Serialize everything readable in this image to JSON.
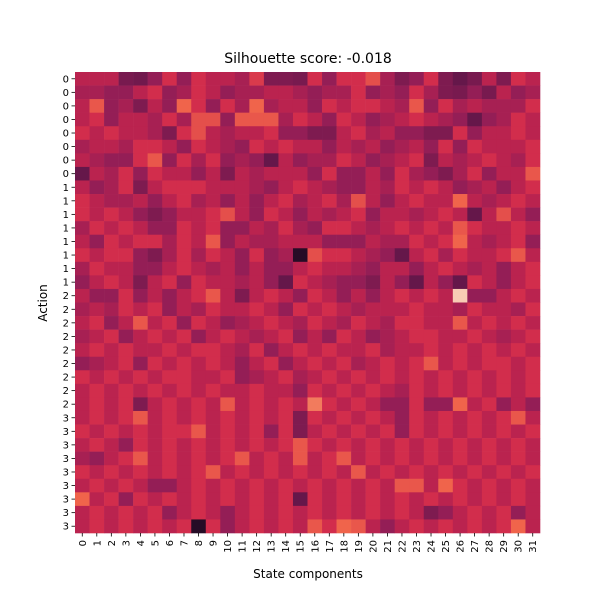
{
  "chart_data": {
    "type": "heatmap",
    "title": "Silhouette score: -0.018",
    "xlabel": "State components",
    "ylabel": "Action",
    "x_tick_labels": [
      "0",
      "1",
      "2",
      "3",
      "4",
      "5",
      "6",
      "7",
      "8",
      "9",
      "10",
      "11",
      "12",
      "13",
      "14",
      "15",
      "16",
      "17",
      "18",
      "19",
      "20",
      "21",
      "22",
      "23",
      "24",
      "25",
      "26",
      "27",
      "28",
      "29",
      "30",
      "31"
    ],
    "y_tick_labels": [
      "0",
      "0",
      "0",
      "0",
      "0",
      "0",
      "0",
      "0",
      "1",
      "1",
      "1",
      "1",
      "1",
      "1",
      "1",
      "1",
      "2",
      "2",
      "2",
      "2",
      "2",
      "2",
      "2",
      "2",
      "2",
      "3",
      "3",
      "3",
      "3",
      "3",
      "3",
      "3",
      "3",
      "3"
    ],
    "rows": 34,
    "cols": 32,
    "value_range": [
      0,
      1
    ],
    "colormap": "rocket",
    "colors": {
      "low": "#1a0a1e",
      "mid_low": "#7e1e56",
      "mid": "#c9254c",
      "mid_high": "#f06b4b",
      "high": "#f9dcc8"
    },
    "values": [
      [
        0.55,
        0.55,
        0.55,
        0.36,
        0.34,
        0.45,
        0.62,
        0.45,
        0.62,
        0.55,
        0.55,
        0.5,
        0.65,
        0.38,
        0.38,
        0.36,
        0.62,
        0.45,
        0.62,
        0.62,
        0.7,
        0.5,
        0.38,
        0.45,
        0.62,
        0.38,
        0.3,
        0.36,
        0.55,
        0.38,
        0.62,
        0.55
      ],
      [
        0.5,
        0.5,
        0.45,
        0.45,
        0.55,
        0.62,
        0.45,
        0.5,
        0.62,
        0.55,
        0.45,
        0.5,
        0.5,
        0.55,
        0.55,
        0.5,
        0.45,
        0.5,
        0.5,
        0.62,
        0.45,
        0.5,
        0.45,
        0.62,
        0.5,
        0.38,
        0.36,
        0.45,
        0.36,
        0.55,
        0.45,
        0.5
      ],
      [
        0.55,
        0.72,
        0.45,
        0.5,
        0.38,
        0.55,
        0.45,
        0.75,
        0.62,
        0.45,
        0.62,
        0.5,
        0.75,
        0.5,
        0.55,
        0.55,
        0.45,
        0.62,
        0.55,
        0.62,
        0.62,
        0.55,
        0.5,
        0.72,
        0.45,
        0.62,
        0.5,
        0.55,
        0.5,
        0.5,
        0.5,
        0.62
      ],
      [
        0.55,
        0.62,
        0.45,
        0.55,
        0.55,
        0.5,
        0.62,
        0.5,
        0.7,
        0.7,
        0.45,
        0.72,
        0.72,
        0.72,
        0.5,
        0.62,
        0.55,
        0.45,
        0.62,
        0.55,
        0.45,
        0.5,
        0.55,
        0.62,
        0.55,
        0.5,
        0.45,
        0.3,
        0.45,
        0.5,
        0.62,
        0.55
      ],
      [
        0.62,
        0.55,
        0.62,
        0.55,
        0.55,
        0.5,
        0.38,
        0.62,
        0.7,
        0.55,
        0.5,
        0.55,
        0.55,
        0.62,
        0.45,
        0.45,
        0.38,
        0.38,
        0.55,
        0.62,
        0.5,
        0.55,
        0.45,
        0.45,
        0.38,
        0.38,
        0.62,
        0.45,
        0.55,
        0.55,
        0.62,
        0.55
      ],
      [
        0.5,
        0.55,
        0.55,
        0.5,
        0.62,
        0.62,
        0.55,
        0.45,
        0.62,
        0.55,
        0.5,
        0.45,
        0.62,
        0.55,
        0.62,
        0.55,
        0.55,
        0.45,
        0.55,
        0.5,
        0.55,
        0.45,
        0.5,
        0.55,
        0.45,
        0.62,
        0.45,
        0.62,
        0.55,
        0.55,
        0.55,
        0.62
      ],
      [
        0.55,
        0.5,
        0.45,
        0.45,
        0.62,
        0.72,
        0.45,
        0.62,
        0.5,
        0.62,
        0.45,
        0.5,
        0.45,
        0.3,
        0.55,
        0.45,
        0.5,
        0.5,
        0.62,
        0.55,
        0.45,
        0.5,
        0.55,
        0.62,
        0.38,
        0.55,
        0.5,
        0.55,
        0.62,
        0.55,
        0.5,
        0.62
      ],
      [
        0.3,
        0.55,
        0.5,
        0.62,
        0.45,
        0.62,
        0.55,
        0.55,
        0.45,
        0.55,
        0.38,
        0.55,
        0.5,
        0.55,
        0.55,
        0.55,
        0.45,
        0.62,
        0.45,
        0.45,
        0.55,
        0.45,
        0.62,
        0.5,
        0.45,
        0.38,
        0.5,
        0.62,
        0.45,
        0.55,
        0.55,
        0.72
      ],
      [
        0.55,
        0.45,
        0.5,
        0.62,
        0.38,
        0.55,
        0.62,
        0.62,
        0.62,
        0.55,
        0.55,
        0.55,
        0.5,
        0.45,
        0.55,
        0.62,
        0.55,
        0.5,
        0.45,
        0.45,
        0.55,
        0.5,
        0.62,
        0.55,
        0.62,
        0.55,
        0.45,
        0.5,
        0.55,
        0.45,
        0.55,
        0.62
      ],
      [
        0.62,
        0.55,
        0.5,
        0.5,
        0.55,
        0.45,
        0.55,
        0.62,
        0.5,
        0.55,
        0.45,
        0.55,
        0.45,
        0.55,
        0.62,
        0.5,
        0.55,
        0.62,
        0.5,
        0.7,
        0.55,
        0.45,
        0.55,
        0.62,
        0.55,
        0.55,
        0.75,
        0.55,
        0.5,
        0.55,
        0.62,
        0.55
      ],
      [
        0.62,
        0.55,
        0.62,
        0.55,
        0.45,
        0.38,
        0.45,
        0.55,
        0.55,
        0.62,
        0.7,
        0.55,
        0.45,
        0.62,
        0.55,
        0.45,
        0.55,
        0.5,
        0.55,
        0.62,
        0.45,
        0.55,
        0.55,
        0.5,
        0.55,
        0.62,
        0.55,
        0.3,
        0.55,
        0.7,
        0.55,
        0.45
      ],
      [
        0.5,
        0.62,
        0.55,
        0.62,
        0.55,
        0.45,
        0.45,
        0.62,
        0.55,
        0.62,
        0.45,
        0.45,
        0.55,
        0.5,
        0.62,
        0.5,
        0.45,
        0.62,
        0.62,
        0.55,
        0.5,
        0.55,
        0.62,
        0.55,
        0.62,
        0.55,
        0.72,
        0.62,
        0.55,
        0.55,
        0.62,
        0.55
      ],
      [
        0.55,
        0.45,
        0.62,
        0.55,
        0.62,
        0.62,
        0.5,
        0.62,
        0.55,
        0.72,
        0.45,
        0.55,
        0.5,
        0.5,
        0.55,
        0.55,
        0.55,
        0.45,
        0.45,
        0.45,
        0.55,
        0.5,
        0.5,
        0.62,
        0.55,
        0.62,
        0.75,
        0.55,
        0.5,
        0.55,
        0.62,
        0.45
      ],
      [
        0.62,
        0.55,
        0.62,
        0.62,
        0.45,
        0.38,
        0.5,
        0.62,
        0.5,
        0.62,
        0.55,
        0.45,
        0.62,
        0.45,
        0.5,
        0.05,
        0.7,
        0.62,
        0.62,
        0.55,
        0.5,
        0.45,
        0.3,
        0.55,
        0.62,
        0.5,
        0.62,
        0.55,
        0.55,
        0.62,
        0.72,
        0.55
      ],
      [
        0.5,
        0.62,
        0.55,
        0.55,
        0.45,
        0.45,
        0.55,
        0.62,
        0.55,
        0.5,
        0.55,
        0.45,
        0.55,
        0.45,
        0.45,
        0.55,
        0.62,
        0.55,
        0.55,
        0.5,
        0.45,
        0.55,
        0.55,
        0.45,
        0.55,
        0.62,
        0.55,
        0.5,
        0.55,
        0.45,
        0.55,
        0.62
      ],
      [
        0.45,
        0.55,
        0.62,
        0.55,
        0.38,
        0.55,
        0.62,
        0.45,
        0.62,
        0.55,
        0.55,
        0.5,
        0.55,
        0.45,
        0.3,
        0.62,
        0.55,
        0.5,
        0.45,
        0.45,
        0.38,
        0.55,
        0.45,
        0.3,
        0.55,
        0.45,
        0.3,
        0.62,
        0.55,
        0.45,
        0.55,
        0.62
      ],
      [
        0.55,
        0.45,
        0.45,
        0.62,
        0.45,
        0.55,
        0.45,
        0.55,
        0.62,
        0.72,
        0.55,
        0.38,
        0.55,
        0.62,
        0.55,
        0.45,
        0.62,
        0.55,
        0.45,
        0.55,
        0.45,
        0.55,
        0.62,
        0.55,
        0.62,
        0.55,
        0.95,
        0.45,
        0.45,
        0.55,
        0.62,
        0.55
      ],
      [
        0.5,
        0.55,
        0.5,
        0.62,
        0.55,
        0.62,
        0.45,
        0.55,
        0.5,
        0.62,
        0.55,
        0.55,
        0.62,
        0.55,
        0.45,
        0.62,
        0.55,
        0.62,
        0.55,
        0.5,
        0.55,
        0.55,
        0.55,
        0.62,
        0.55,
        0.55,
        0.5,
        0.62,
        0.55,
        0.55,
        0.5,
        0.62
      ],
      [
        0.55,
        0.62,
        0.45,
        0.55,
        0.72,
        0.55,
        0.62,
        0.45,
        0.62,
        0.55,
        0.45,
        0.5,
        0.55,
        0.62,
        0.55,
        0.5,
        0.62,
        0.55,
        0.5,
        0.62,
        0.55,
        0.5,
        0.62,
        0.62,
        0.55,
        0.55,
        0.72,
        0.55,
        0.62,
        0.55,
        0.62,
        0.55
      ],
      [
        0.5,
        0.55,
        0.62,
        0.45,
        0.55,
        0.62,
        0.55,
        0.62,
        0.45,
        0.55,
        0.62,
        0.55,
        0.5,
        0.55,
        0.62,
        0.45,
        0.55,
        0.45,
        0.62,
        0.55,
        0.45,
        0.5,
        0.55,
        0.62,
        0.62,
        0.55,
        0.55,
        0.62,
        0.55,
        0.5,
        0.55,
        0.62
      ],
      [
        0.55,
        0.62,
        0.55,
        0.62,
        0.55,
        0.55,
        0.62,
        0.55,
        0.62,
        0.62,
        0.55,
        0.5,
        0.62,
        0.45,
        0.55,
        0.62,
        0.55,
        0.62,
        0.55,
        0.55,
        0.62,
        0.5,
        0.55,
        0.55,
        0.62,
        0.55,
        0.62,
        0.55,
        0.62,
        0.55,
        0.62,
        0.55
      ],
      [
        0.45,
        0.5,
        0.55,
        0.62,
        0.45,
        0.62,
        0.55,
        0.62,
        0.55,
        0.62,
        0.55,
        0.45,
        0.55,
        0.62,
        0.45,
        0.55,
        0.62,
        0.55,
        0.62,
        0.5,
        0.55,
        0.62,
        0.55,
        0.62,
        0.72,
        0.55,
        0.62,
        0.55,
        0.62,
        0.62,
        0.55,
        0.62
      ],
      [
        0.62,
        0.55,
        0.62,
        0.55,
        0.62,
        0.55,
        0.62,
        0.62,
        0.55,
        0.55,
        0.62,
        0.45,
        0.5,
        0.55,
        0.62,
        0.5,
        0.55,
        0.62,
        0.55,
        0.62,
        0.55,
        0.62,
        0.55,
        0.62,
        0.55,
        0.62,
        0.55,
        0.62,
        0.55,
        0.62,
        0.55,
        0.62
      ],
      [
        0.55,
        0.62,
        0.55,
        0.62,
        0.55,
        0.62,
        0.55,
        0.62,
        0.55,
        0.62,
        0.55,
        0.55,
        0.62,
        0.55,
        0.55,
        0.45,
        0.62,
        0.55,
        0.62,
        0.55,
        0.62,
        0.55,
        0.5,
        0.62,
        0.55,
        0.62,
        0.55,
        0.62,
        0.55,
        0.62,
        0.55,
        0.62
      ],
      [
        0.55,
        0.62,
        0.55,
        0.62,
        0.38,
        0.55,
        0.62,
        0.55,
        0.62,
        0.55,
        0.72,
        0.55,
        0.62,
        0.55,
        0.62,
        0.55,
        0.8,
        0.62,
        0.55,
        0.62,
        0.55,
        0.45,
        0.45,
        0.62,
        0.45,
        0.45,
        0.75,
        0.55,
        0.62,
        0.45,
        0.55,
        0.45
      ],
      [
        0.55,
        0.62,
        0.55,
        0.62,
        0.72,
        0.55,
        0.62,
        0.55,
        0.62,
        0.55,
        0.62,
        0.55,
        0.62,
        0.55,
        0.62,
        0.38,
        0.62,
        0.55,
        0.62,
        0.55,
        0.62,
        0.55,
        0.45,
        0.62,
        0.55,
        0.62,
        0.55,
        0.62,
        0.55,
        0.62,
        0.72,
        0.55
      ],
      [
        0.62,
        0.55,
        0.62,
        0.55,
        0.62,
        0.55,
        0.62,
        0.62,
        0.72,
        0.55,
        0.62,
        0.55,
        0.62,
        0.45,
        0.62,
        0.38,
        0.55,
        0.62,
        0.55,
        0.62,
        0.55,
        0.62,
        0.45,
        0.62,
        0.55,
        0.62,
        0.55,
        0.62,
        0.55,
        0.62,
        0.55,
        0.62
      ],
      [
        0.55,
        0.62,
        0.55,
        0.45,
        0.62,
        0.55,
        0.62,
        0.55,
        0.62,
        0.55,
        0.62,
        0.55,
        0.62,
        0.55,
        0.62,
        0.72,
        0.62,
        0.55,
        0.62,
        0.55,
        0.62,
        0.55,
        0.62,
        0.55,
        0.62,
        0.55,
        0.62,
        0.55,
        0.62,
        0.55,
        0.62,
        0.55
      ],
      [
        0.5,
        0.45,
        0.55,
        0.62,
        0.72,
        0.55,
        0.62,
        0.55,
        0.62,
        0.55,
        0.62,
        0.72,
        0.55,
        0.62,
        0.55,
        0.72,
        0.55,
        0.62,
        0.72,
        0.55,
        0.62,
        0.55,
        0.62,
        0.55,
        0.62,
        0.55,
        0.62,
        0.55,
        0.62,
        0.55,
        0.62,
        0.55
      ],
      [
        0.62,
        0.55,
        0.62,
        0.55,
        0.62,
        0.55,
        0.62,
        0.55,
        0.62,
        0.72,
        0.55,
        0.62,
        0.55,
        0.62,
        0.55,
        0.62,
        0.55,
        0.62,
        0.55,
        0.72,
        0.55,
        0.62,
        0.55,
        0.62,
        0.55,
        0.62,
        0.55,
        0.62,
        0.55,
        0.62,
        0.55,
        0.62
      ],
      [
        0.55,
        0.62,
        0.55,
        0.62,
        0.55,
        0.45,
        0.45,
        0.55,
        0.62,
        0.55,
        0.62,
        0.55,
        0.62,
        0.55,
        0.62,
        0.55,
        0.62,
        0.55,
        0.62,
        0.55,
        0.62,
        0.55,
        0.72,
        0.72,
        0.55,
        0.75,
        0.62,
        0.55,
        0.62,
        0.55,
        0.62,
        0.55
      ],
      [
        0.75,
        0.55,
        0.62,
        0.45,
        0.62,
        0.55,
        0.62,
        0.55,
        0.62,
        0.55,
        0.62,
        0.55,
        0.62,
        0.55,
        0.62,
        0.3,
        0.62,
        0.55,
        0.62,
        0.55,
        0.62,
        0.55,
        0.62,
        0.55,
        0.62,
        0.55,
        0.62,
        0.55,
        0.62,
        0.55,
        0.62,
        0.55
      ],
      [
        0.55,
        0.62,
        0.55,
        0.62,
        0.55,
        0.62,
        0.45,
        0.55,
        0.62,
        0.55,
        0.45,
        0.55,
        0.62,
        0.55,
        0.62,
        0.55,
        0.62,
        0.55,
        0.62,
        0.55,
        0.62,
        0.55,
        0.62,
        0.55,
        0.38,
        0.45,
        0.55,
        0.62,
        0.55,
        0.62,
        0.45,
        0.55
      ],
      [
        0.55,
        0.62,
        0.55,
        0.62,
        0.55,
        0.62,
        0.55,
        0.62,
        0.05,
        0.62,
        0.45,
        0.55,
        0.62,
        0.55,
        0.62,
        0.55,
        0.72,
        0.62,
        0.75,
        0.72,
        0.55,
        0.45,
        0.55,
        0.62,
        0.55,
        0.62,
        0.55,
        0.62,
        0.55,
        0.62,
        0.75,
        0.55
      ]
    ]
  }
}
